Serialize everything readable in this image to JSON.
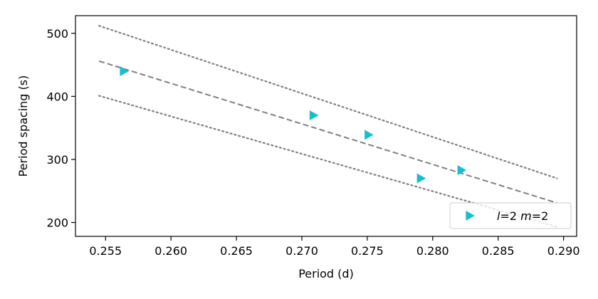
{
  "chart_data": {
    "type": "scatter",
    "xlabel": "Period (d)",
    "ylabel": "Period spacing (s)",
    "xlim": [
      0.2527,
      0.291
    ],
    "ylim": [
      178,
      528
    ],
    "xticks": [
      0.255,
      0.26,
      0.265,
      0.27,
      0.275,
      0.28,
      0.285,
      0.29
    ],
    "xtick_labels": [
      "0.255",
      "0.260",
      "0.265",
      "0.270",
      "0.275",
      "0.280",
      "0.285",
      "0.290"
    ],
    "yticks": [
      200,
      300,
      400,
      500
    ],
    "ytick_labels": [
      "200",
      "300",
      "400",
      "500"
    ],
    "grid": false,
    "legend_position": "lower-right",
    "series": [
      {
        "name": "l=2 m=2",
        "legend_parts": [
          {
            "text": "l",
            "italic": true
          },
          {
            "text": "=2 ",
            "italic": false
          },
          {
            "text": "m",
            "italic": true
          },
          {
            "text": "=2",
            "italic": false
          }
        ],
        "marker": "triangle-right",
        "color": "#17becf",
        "x": [
          0.2564,
          0.2709,
          0.2751,
          0.2791,
          0.2822
        ],
        "y": [
          440,
          370,
          339,
          270,
          283
        ]
      }
    ],
    "fit_lines": [
      {
        "style": "dashed",
        "color": "#808080",
        "x": [
          0.2545,
          0.2895
        ],
        "y": [
          456,
          231
        ]
      },
      {
        "style": "dotted",
        "color": "#808080",
        "x": [
          0.2545,
          0.2895
        ],
        "y": [
          512,
          270
        ]
      },
      {
        "style": "dotted",
        "color": "#808080",
        "x": [
          0.2545,
          0.2895
        ],
        "y": [
          401,
          193
        ]
      }
    ]
  }
}
